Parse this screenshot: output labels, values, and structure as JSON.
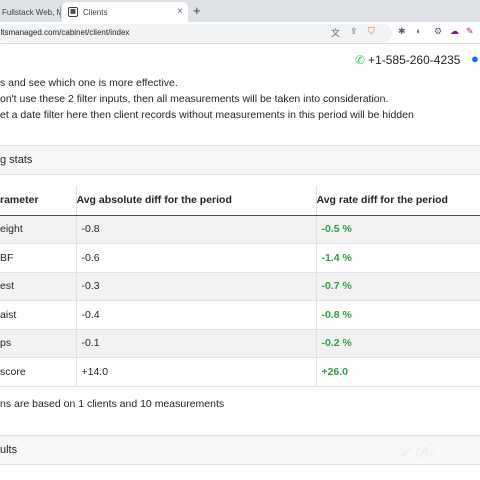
{
  "browser": {
    "tabs": [
      {
        "label": "Fullstack Web, Mob",
        "active": false
      },
      {
        "label": "Clients",
        "active": true
      }
    ],
    "new_tab_glyph": "+",
    "close_glyph": "×",
    "address": "ultsmanaged.com/cabinet/client/index"
  },
  "header": {
    "phone": "+1-585-260-4235"
  },
  "info_lines": [
    "s and see which one is more effective.",
    "on't use these 2 filter inputs, then all measurements will be taken into consideration.",
    "et a date filter here then client records without measurements in this period will be hidden"
  ],
  "stats_card": {
    "title": "g stats"
  },
  "table": {
    "headers": [
      "rameter",
      "Avg absolute diff for the period",
      "Avg rate diff for the period"
    ],
    "rows": [
      {
        "param": "eight",
        "abs": "-0.8",
        "rate": "-0.5 %"
      },
      {
        "param": "BF",
        "abs": "-0.6",
        "rate": "-1.4 %"
      },
      {
        "param": "est",
        "abs": "-0.3",
        "rate": "-0.7 %"
      },
      {
        "param": "aist",
        "abs": "-0.4",
        "rate": "-0.8 %"
      },
      {
        "param": "ps",
        "abs": "-0.1",
        "rate": "-0.2 %"
      },
      {
        "param": "score",
        "abs": "+14.0",
        "rate": "+26.0"
      }
    ]
  },
  "summary": "ns are based on 1 clients and 10 measurements",
  "results_card": {
    "title": "ults"
  },
  "colors": {
    "positive_green": "#2f9e44",
    "link_blue": "#0d6efd",
    "whatsapp_green": "#25d366"
  }
}
